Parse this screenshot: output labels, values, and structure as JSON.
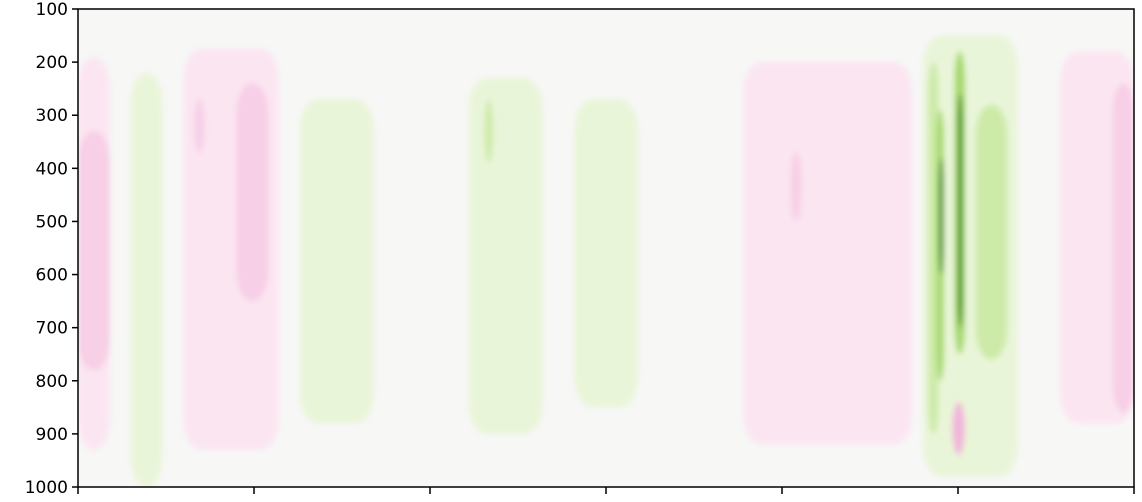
{
  "chart_data": {
    "type": "heatmap",
    "title": "",
    "xlabel": "",
    "ylabel": "",
    "ylim": [
      1000,
      100
    ],
    "y_ticks": [
      100,
      200,
      300,
      400,
      500,
      600,
      700,
      800,
      900,
      1000
    ],
    "x_tick_count": 7,
    "x_tick_labels": [],
    "colormap": "PiYG",
    "background_color": "#f7f7f6",
    "levels": [
      {
        "level": 3,
        "color": "#c51b7d"
      },
      {
        "level": 2,
        "color": "#f1b6da"
      },
      {
        "level": 1,
        "color": "#f7cfe6"
      },
      {
        "level": 0.5,
        "color": "#fbe5f1"
      },
      {
        "level": -0.5,
        "color": "#e9f5d8"
      },
      {
        "level": -1,
        "color": "#cdeaa9"
      },
      {
        "level": -2,
        "color": "#a6d96a"
      },
      {
        "level": -3,
        "color": "#4d9221"
      }
    ],
    "blobs": [
      {
        "x": [
          0.0,
          0.03
        ],
        "p": [
          190,
          930
        ],
        "level": 0.5
      },
      {
        "x": [
          0.0,
          0.03
        ],
        "p": [
          330,
          780
        ],
        "level": 1
      },
      {
        "x": [
          0.05,
          0.08
        ],
        "p": [
          220,
          1000
        ],
        "level": -0.5
      },
      {
        "x": [
          0.1,
          0.19
        ],
        "p": [
          175,
          930
        ],
        "level": 0.5
      },
      {
        "x": [
          0.15,
          0.18
        ],
        "p": [
          240,
          650
        ],
        "level": 1
      },
      {
        "x": [
          0.11,
          0.12
        ],
        "p": [
          270,
          370
        ],
        "level": 1
      },
      {
        "x": [
          0.21,
          0.28
        ],
        "p": [
          270,
          880
        ],
        "level": -0.5
      },
      {
        "x": [
          0.37,
          0.44
        ],
        "p": [
          230,
          900
        ],
        "level": -0.5
      },
      {
        "x": [
          0.385,
          0.393
        ],
        "p": [
          270,
          390
        ],
        "level": -1
      },
      {
        "x": [
          0.47,
          0.53
        ],
        "p": [
          270,
          850
        ],
        "level": -0.5
      },
      {
        "x": [
          0.63,
          0.79
        ],
        "p": [
          200,
          920
        ],
        "level": 0.5
      },
      {
        "x": [
          0.675,
          0.685
        ],
        "p": [
          370,
          500
        ],
        "level": 1
      },
      {
        "x": [
          0.8,
          0.89
        ],
        "p": [
          150,
          980
        ],
        "level": -0.5
      },
      {
        "x": [
          0.805,
          0.815
        ],
        "p": [
          200,
          900
        ],
        "level": -1
      },
      {
        "x": [
          0.813,
          0.82
        ],
        "p": [
          290,
          800
        ],
        "level": -2
      },
      {
        "x": [
          0.815,
          0.82
        ],
        "p": [
          380,
          600
        ],
        "level": -3
      },
      {
        "x": [
          0.83,
          0.84
        ],
        "p": [
          180,
          750
        ],
        "level": -2
      },
      {
        "x": [
          0.833,
          0.838
        ],
        "p": [
          260,
          700
        ],
        "level": -3
      },
      {
        "x": [
          0.85,
          0.88
        ],
        "p": [
          280,
          760
        ],
        "level": -1
      },
      {
        "x": [
          0.828,
          0.84
        ],
        "p": [
          840,
          940
        ],
        "level": 2
      },
      {
        "x": [
          0.93,
          1.0
        ],
        "p": [
          180,
          880
        ],
        "level": 0.5
      },
      {
        "x": [
          0.98,
          1.0
        ],
        "p": [
          240,
          860
        ],
        "level": 1
      }
    ]
  }
}
